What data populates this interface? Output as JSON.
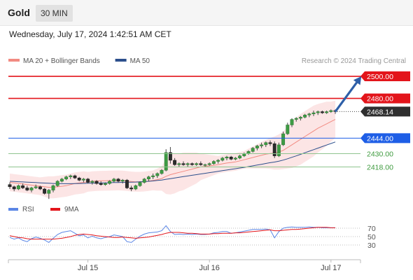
{
  "header": {
    "title": "Gold",
    "timeframe": "30 MIN"
  },
  "timestamp": "Wednesday, July 17, 2024 1:42:51 AM CET",
  "legend": {
    "items": [
      {
        "label": "MA 20 + Bollinger Bands",
        "color": "#f28b82"
      },
      {
        "label": "MA 50",
        "color": "#2c4f8c"
      }
    ],
    "credit": "Research © 2024 Trading Central"
  },
  "levels": [
    {
      "value": 2500.0,
      "label": "2500.00",
      "color": "#e3151b",
      "style": "resistance"
    },
    {
      "value": 2480.0,
      "label": "2480.00",
      "color": "#e3151b",
      "style": "resistance"
    },
    {
      "value": 2468.14,
      "label": "2468.14",
      "color": "#333333",
      "style": "last-price"
    },
    {
      "value": 2444.0,
      "label": "2444.00",
      "color": "#1e5ee6",
      "style": "pivot"
    },
    {
      "value": 2430.0,
      "label": "2430.00",
      "color": "#3d9a3d",
      "style": "support"
    },
    {
      "value": 2418.0,
      "label": "2418.00",
      "color": "#3d9a3d",
      "style": "support"
    }
  ],
  "x_axis": {
    "ticks": [
      {
        "label": "Jul 15",
        "bar": 18
      },
      {
        "label": "Jul 16",
        "bar": 46
      },
      {
        "label": "Jul 17",
        "bar": 74
      }
    ]
  },
  "rsi_legend": {
    "items": [
      {
        "label": "RSI",
        "color": "#5b86e5"
      },
      {
        "label": "9MA",
        "color": "#e3151b"
      }
    ]
  },
  "rsi_axis": {
    "ticks": [
      {
        "label": "70",
        "value": 70
      },
      {
        "label": "50",
        "value": 50
      },
      {
        "label": "30",
        "value": 30
      }
    ]
  },
  "chart_data": {
    "type": "candlestick",
    "symbol": "Gold",
    "interval": "30 MIN",
    "price_range": [
      2398,
      2507
    ],
    "candles": [
      [
        2402,
        2404,
        2398,
        2400
      ],
      [
        2400,
        2401,
        2396,
        2398
      ],
      [
        2398,
        2402,
        2397,
        2401
      ],
      [
        2401,
        2403,
        2398,
        2399
      ],
      [
        2399,
        2401,
        2396,
        2397
      ],
      [
        2397,
        2400,
        2395,
        2399
      ],
      [
        2399,
        2402,
        2398,
        2400
      ],
      [
        2400,
        2401,
        2397,
        2398
      ],
      [
        2398,
        2399,
        2393,
        2394
      ],
      [
        2394,
        2398,
        2389,
        2397
      ],
      [
        2397,
        2402,
        2395,
        2401
      ],
      [
        2401,
        2406,
        2400,
        2405
      ],
      [
        2405,
        2408,
        2404,
        2407
      ],
      [
        2407,
        2410,
        2406,
        2409
      ],
      [
        2409,
        2411,
        2407,
        2410
      ],
      [
        2410,
        2411,
        2407,
        2408
      ],
      [
        2408,
        2409,
        2405,
        2406
      ],
      [
        2406,
        2408,
        2404,
        2407
      ],
      [
        2407,
        2408,
        2403,
        2404
      ],
      [
        2404,
        2406,
        2402,
        2405
      ],
      [
        2405,
        2406,
        2402,
        2403
      ],
      [
        2403,
        2405,
        2401,
        2402
      ],
      [
        2402,
        2404,
        2401,
        2403
      ],
      [
        2403,
        2406,
        2402,
        2405
      ],
      [
        2405,
        2408,
        2404,
        2407
      ],
      [
        2407,
        2408,
        2404,
        2405
      ],
      [
        2405,
        2407,
        2403,
        2406
      ],
      [
        2406,
        2407,
        2398,
        2399
      ],
      [
        2399,
        2401,
        2396,
        2398
      ],
      [
        2398,
        2402,
        2397,
        2401
      ],
      [
        2401,
        2405,
        2400,
        2404
      ],
      [
        2404,
        2408,
        2403,
        2407
      ],
      [
        2407,
        2410,
        2405,
        2409
      ],
      [
        2409,
        2412,
        2407,
        2410
      ],
      [
        2410,
        2413,
        2408,
        2412
      ],
      [
        2412,
        2416,
        2411,
        2415
      ],
      [
        2415,
        2434,
        2414,
        2431
      ],
      [
        2431,
        2436,
        2421,
        2424
      ],
      [
        2424,
        2426,
        2419,
        2420
      ],
      [
        2420,
        2422,
        2418,
        2421
      ],
      [
        2421,
        2423,
        2419,
        2420
      ],
      [
        2420,
        2422,
        2418,
        2421
      ],
      [
        2421,
        2422,
        2419,
        2420
      ],
      [
        2420,
        2422,
        2419,
        2421
      ],
      [
        2421,
        2423,
        2419,
        2420
      ],
      [
        2420,
        2421,
        2418,
        2420
      ],
      [
        2420,
        2422,
        2419,
        2421
      ],
      [
        2421,
        2424,
        2420,
        2423
      ],
      [
        2423,
        2425,
        2421,
        2424
      ],
      [
        2424,
        2427,
        2423,
        2426
      ],
      [
        2426,
        2428,
        2424,
        2427
      ],
      [
        2427,
        2428,
        2424,
        2425
      ],
      [
        2425,
        2427,
        2424,
        2426
      ],
      [
        2426,
        2429,
        2425,
        2428
      ],
      [
        2428,
        2431,
        2427,
        2430
      ],
      [
        2430,
        2433,
        2429,
        2432
      ],
      [
        2432,
        2436,
        2431,
        2435
      ],
      [
        2435,
        2438,
        2433,
        2437
      ],
      [
        2437,
        2440,
        2435,
        2438
      ],
      [
        2438,
        2441,
        2436,
        2440
      ],
      [
        2440,
        2442,
        2437,
        2439
      ],
      [
        2439,
        2441,
        2426,
        2428
      ],
      [
        2428,
        2440,
        2427,
        2438
      ],
      [
        2438,
        2450,
        2437,
        2448
      ],
      [
        2448,
        2458,
        2447,
        2456
      ],
      [
        2456,
        2462,
        2454,
        2461
      ],
      [
        2461,
        2463,
        2459,
        2462
      ],
      [
        2462,
        2464,
        2460,
        2463
      ],
      [
        2463,
        2466,
        2462,
        2465
      ],
      [
        2465,
        2467,
        2463,
        2466
      ],
      [
        2466,
        2469,
        2464,
        2467
      ],
      [
        2467,
        2469,
        2465,
        2468
      ],
      [
        2468,
        2469,
        2466,
        2467
      ],
      [
        2467,
        2469,
        2466,
        2468
      ],
      [
        2468,
        2470,
        2467,
        2469
      ],
      [
        2469,
        2470,
        2466,
        2468.14
      ]
    ],
    "ma20": [
      2404,
      2403.5,
      2403,
      2402.5,
      2402,
      2401.5,
      2401,
      2400.5,
      2400,
      2399.5,
      2399.5,
      2400,
      2400.5,
      2401,
      2402,
      2403,
      2403.5,
      2404,
      2404.5,
      2405,
      2405.2,
      2405.4,
      2405.5,
      2405.6,
      2405.7,
      2405.8,
      2405.6,
      2405.2,
      2404.8,
      2404.5,
      2404.5,
      2404.8,
      2405.2,
      2405.8,
      2406.5,
      2407.5,
      2409.5,
      2411,
      2412,
      2413,
      2414,
      2415,
      2416,
      2417,
      2418,
      2418.5,
      2419,
      2419.5,
      2420,
      2420.8,
      2421.5,
      2422,
      2422.5,
      2423.5,
      2424.5,
      2425.5,
      2426.5,
      2427.5,
      2428.5,
      2429.5,
      2430.2,
      2430.5,
      2431.5,
      2433,
      2435.5,
      2438,
      2440.5,
      2443,
      2445.5,
      2448,
      2450.5,
      2453,
      2455,
      2457,
      2459,
      2461
    ],
    "ma50": [
      2405,
      2404.8,
      2404.6,
      2404.4,
      2404.2,
      2404,
      2403.8,
      2403.6,
      2403.4,
      2403.2,
      2403,
      2402.9,
      2402.8,
      2402.8,
      2402.8,
      2402.9,
      2403,
      2403.1,
      2403.2,
      2403.3,
      2403.4,
      2403.5,
      2403.6,
      2403.7,
      2403.8,
      2403.9,
      2404,
      2404.1,
      2404.2,
      2404.3,
      2404.5,
      2404.7,
      2405,
      2405.3,
      2405.7,
      2406.1,
      2406.8,
      2407.4,
      2408,
      2408.6,
      2409.2,
      2409.8,
      2410.4,
      2411,
      2411.6,
      2412.2,
      2412.8,
      2413.4,
      2414,
      2414.6,
      2415.2,
      2415.8,
      2416.4,
      2417,
      2417.6,
      2418.3,
      2419,
      2419.7,
      2420.4,
      2421.1,
      2421.8,
      2422.4,
      2423.2,
      2424.2,
      2425.4,
      2426.7,
      2428,
      2429.4,
      2430.8,
      2432.2,
      2433.6,
      2435,
      2436.4,
      2437.8,
      2439.2,
      2440.6
    ],
    "bollinger_width": [
      8,
      8,
      8,
      8,
      8,
      8,
      8,
      8,
      9,
      10,
      10,
      10,
      10,
      10,
      10,
      10,
      10,
      10,
      9,
      9,
      9,
      9,
      9,
      9,
      9,
      9,
      9,
      9,
      9,
      9,
      9,
      9,
      9,
      9,
      10,
      11,
      16,
      18,
      18,
      17,
      17,
      16,
      15,
      14,
      12,
      11,
      10,
      9,
      8,
      8,
      8,
      8,
      8,
      8,
      8,
      9,
      10,
      11,
      12,
      13,
      14,
      15,
      16,
      17,
      19,
      21,
      22,
      23,
      23,
      23,
      23,
      22,
      21,
      20,
      18,
      17
    ],
    "rsi": [
      48,
      44,
      47,
      41,
      38,
      45,
      49,
      46,
      42,
      36,
      46,
      55,
      60,
      62,
      64,
      58,
      52,
      54,
      47,
      51,
      47,
      45,
      48,
      50,
      54,
      52,
      50,
      38,
      36,
      44,
      51,
      56,
      59,
      60,
      61,
      64,
      76,
      62,
      55,
      56,
      55,
      56,
      55,
      56,
      55,
      55,
      56,
      59,
      60,
      62,
      62,
      58,
      59,
      61,
      63,
      65,
      67,
      67,
      67,
      68,
      66,
      47,
      62,
      70,
      72,
      73,
      72,
      72,
      72,
      73,
      72,
      72,
      71,
      71,
      71,
      71
    ],
    "rsi_ma9": [
      52,
      50,
      48,
      47,
      45,
      44,
      44,
      44,
      44,
      44,
      44,
      45,
      46,
      48,
      50,
      53,
      55,
      56,
      55,
      54,
      52,
      51,
      50,
      49,
      48,
      48,
      49,
      48,
      47,
      46,
      47,
      48,
      49,
      51,
      53,
      55,
      58,
      60,
      60,
      60,
      59,
      58,
      58,
      57,
      56,
      56,
      56,
      57,
      57,
      58,
      58,
      58,
      59,
      59,
      60,
      61,
      62,
      63,
      64,
      65,
      66,
      64,
      64,
      65,
      66,
      67,
      67,
      68,
      69,
      70,
      71,
      72,
      72,
      72,
      71,
      71
    ],
    "rsi_range": [
      0,
      100
    ],
    "forecast_arrow": {
      "from_bar": 75,
      "from_value": 2468,
      "to_bar": 81,
      "to_value": 2500
    }
  }
}
